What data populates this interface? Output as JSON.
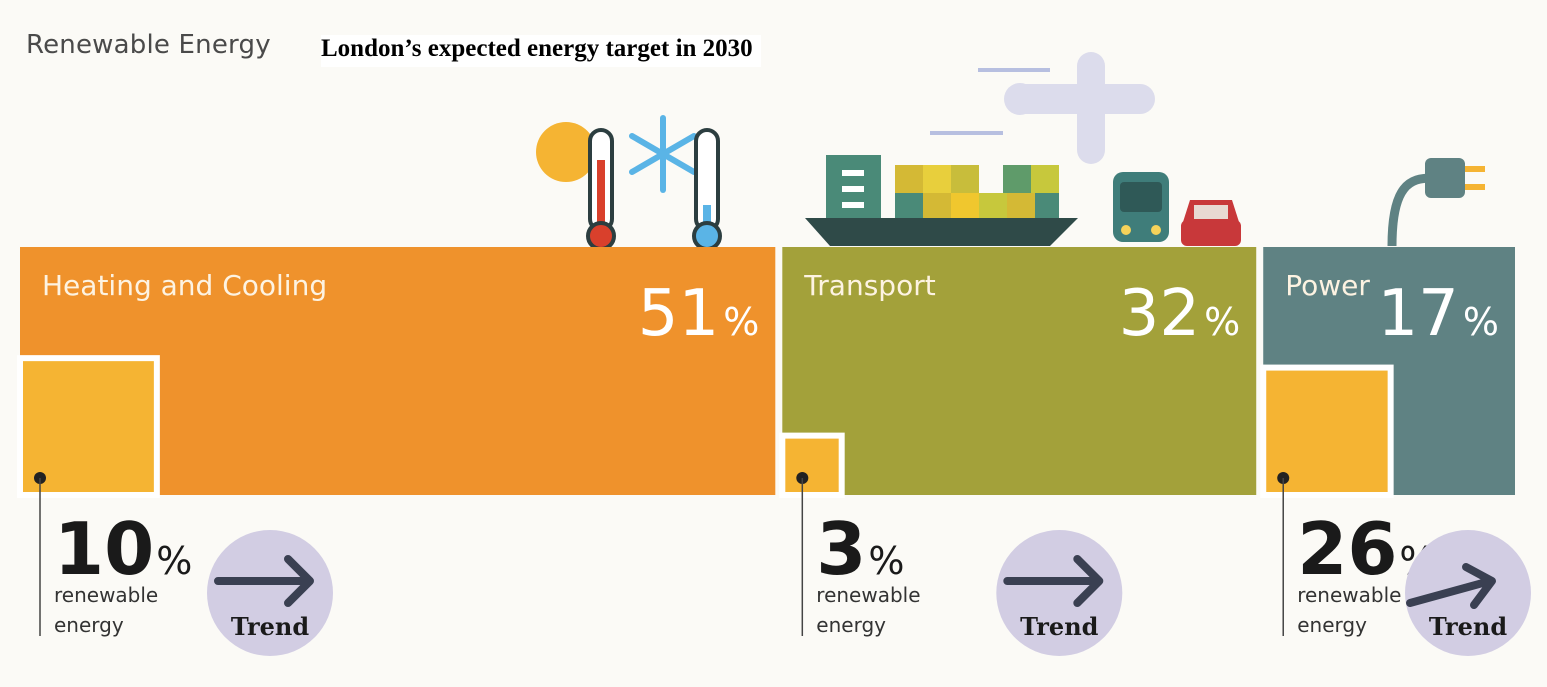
{
  "brand_label": "Renewable Energy",
  "headline": "London’s expected energy target in 2030",
  "colors": {
    "heating": "#ef922c",
    "transport": "#a3a13a",
    "power": "#5f8283",
    "renewable": "#f5b433",
    "trend_circle": "#d2cde3"
  },
  "chart_data": {
    "type": "bar",
    "categories": [
      "Heating and Cooling",
      "Transport",
      "Power"
    ],
    "series": [
      {
        "values": [
          51,
          32,
          17
        ]
      },
      {
        "values": [
          10,
          3,
          26
        ]
      }
    ],
    "unit": "%",
    "renewable_sub_label": [
      "renewable",
      "energy"
    ],
    "trend_label": "Trend",
    "trend_icons": [
      "arrow-right-icon",
      "arrow-right-icon",
      "arrow-up-right-icon"
    ]
  }
}
